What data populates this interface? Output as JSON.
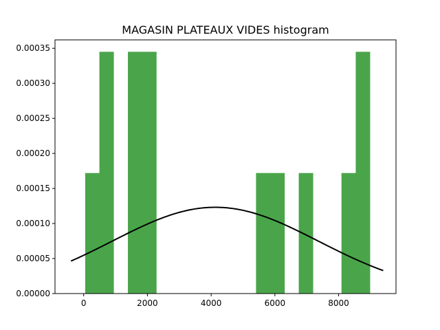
{
  "chart_data": {
    "type": "bar",
    "title": "MAGASIN PLATEAUX VIDES histogram",
    "xlabel": "",
    "ylabel": "",
    "xlim": [
      -900,
      9800
    ],
    "ylim": [
      0,
      0.000362
    ],
    "grid": false,
    "legend": "none",
    "x_ticks": [
      {
        "value": 0,
        "label": "0"
      },
      {
        "value": 2000,
        "label": "2000"
      },
      {
        "value": 4000,
        "label": "4000"
      },
      {
        "value": 6000,
        "label": "6000"
      },
      {
        "value": 8000,
        "label": "8000"
      }
    ],
    "y_ticks": [
      {
        "value": 0,
        "label": "0.00000"
      },
      {
        "value": 5e-05,
        "label": "0.00005"
      },
      {
        "value": 0.0001,
        "label": "0.00010"
      },
      {
        "value": 0.00015,
        "label": "0.00015"
      },
      {
        "value": 0.0002,
        "label": "0.00020"
      },
      {
        "value": 0.00025,
        "label": "0.00025"
      },
      {
        "value": 0.0003,
        "label": "0.00030"
      },
      {
        "value": 0.00035,
        "label": "0.00035"
      }
    ],
    "bin_edges": [
      47,
      493,
      940,
      1387,
      1834,
      2281,
      2727,
      3174,
      3621,
      4068,
      4515,
      4961,
      5408,
      5855,
      6302,
      6749,
      7195,
      7642,
      8089,
      8536,
      8983
    ],
    "density": [
      0.000172,
      0.000345,
      0,
      0.000345,
      0.000345,
      0,
      0,
      0,
      0,
      0,
      0,
      0,
      0.000172,
      0.000172,
      0,
      0.000172,
      0,
      0,
      0.000172,
      0.000345
    ],
    "normal_fit": {
      "mean": 4130,
      "std": 3240,
      "x_range": [
        -400,
        9400
      ]
    },
    "colors": {
      "bars": "#4aa54a",
      "curve": "#000000",
      "axes": "#000000"
    }
  }
}
